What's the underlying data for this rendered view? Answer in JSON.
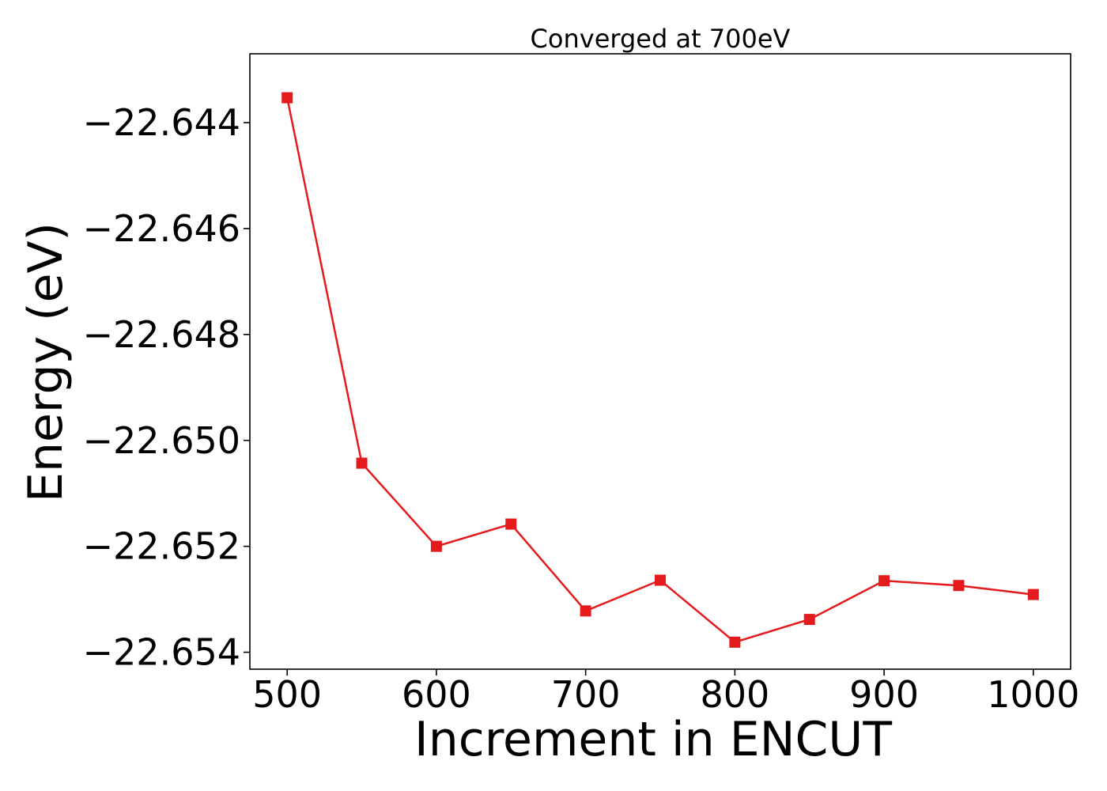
{
  "chart_data": {
    "type": "line",
    "title": "Converged at 700eV",
    "xlabel": "Increment in ENCUT",
    "ylabel": "Energy (eV)",
    "x": [
      500,
      550,
      600,
      650,
      700,
      750,
      800,
      850,
      900,
      950,
      1000
    ],
    "series": [
      {
        "name": "",
        "color": "#e41a1c",
        "marker": "square",
        "values": [
          -22.64353,
          -22.65043,
          -22.652,
          -22.65158,
          -22.65322,
          -22.65264,
          -22.65381,
          -22.65338,
          -22.65265,
          -22.65274,
          -22.65291
        ]
      }
    ],
    "xlim": [
      475,
      1025
    ],
    "ylim": [
      -22.65432,
      -22.6427
    ],
    "xticks": [
      500,
      600,
      700,
      800,
      900,
      1000
    ],
    "xtick_labels": [
      "500",
      "600",
      "700",
      "800",
      "900",
      "1000"
    ],
    "yticks": [
      -22.644,
      -22.646,
      -22.648,
      -22.65,
      -22.652,
      -22.654
    ],
    "ytick_labels": [
      "−22.644",
      "−22.646",
      "−22.648",
      "−22.650",
      "−22.652",
      "−22.654"
    ],
    "grid": false,
    "legend": "none"
  }
}
